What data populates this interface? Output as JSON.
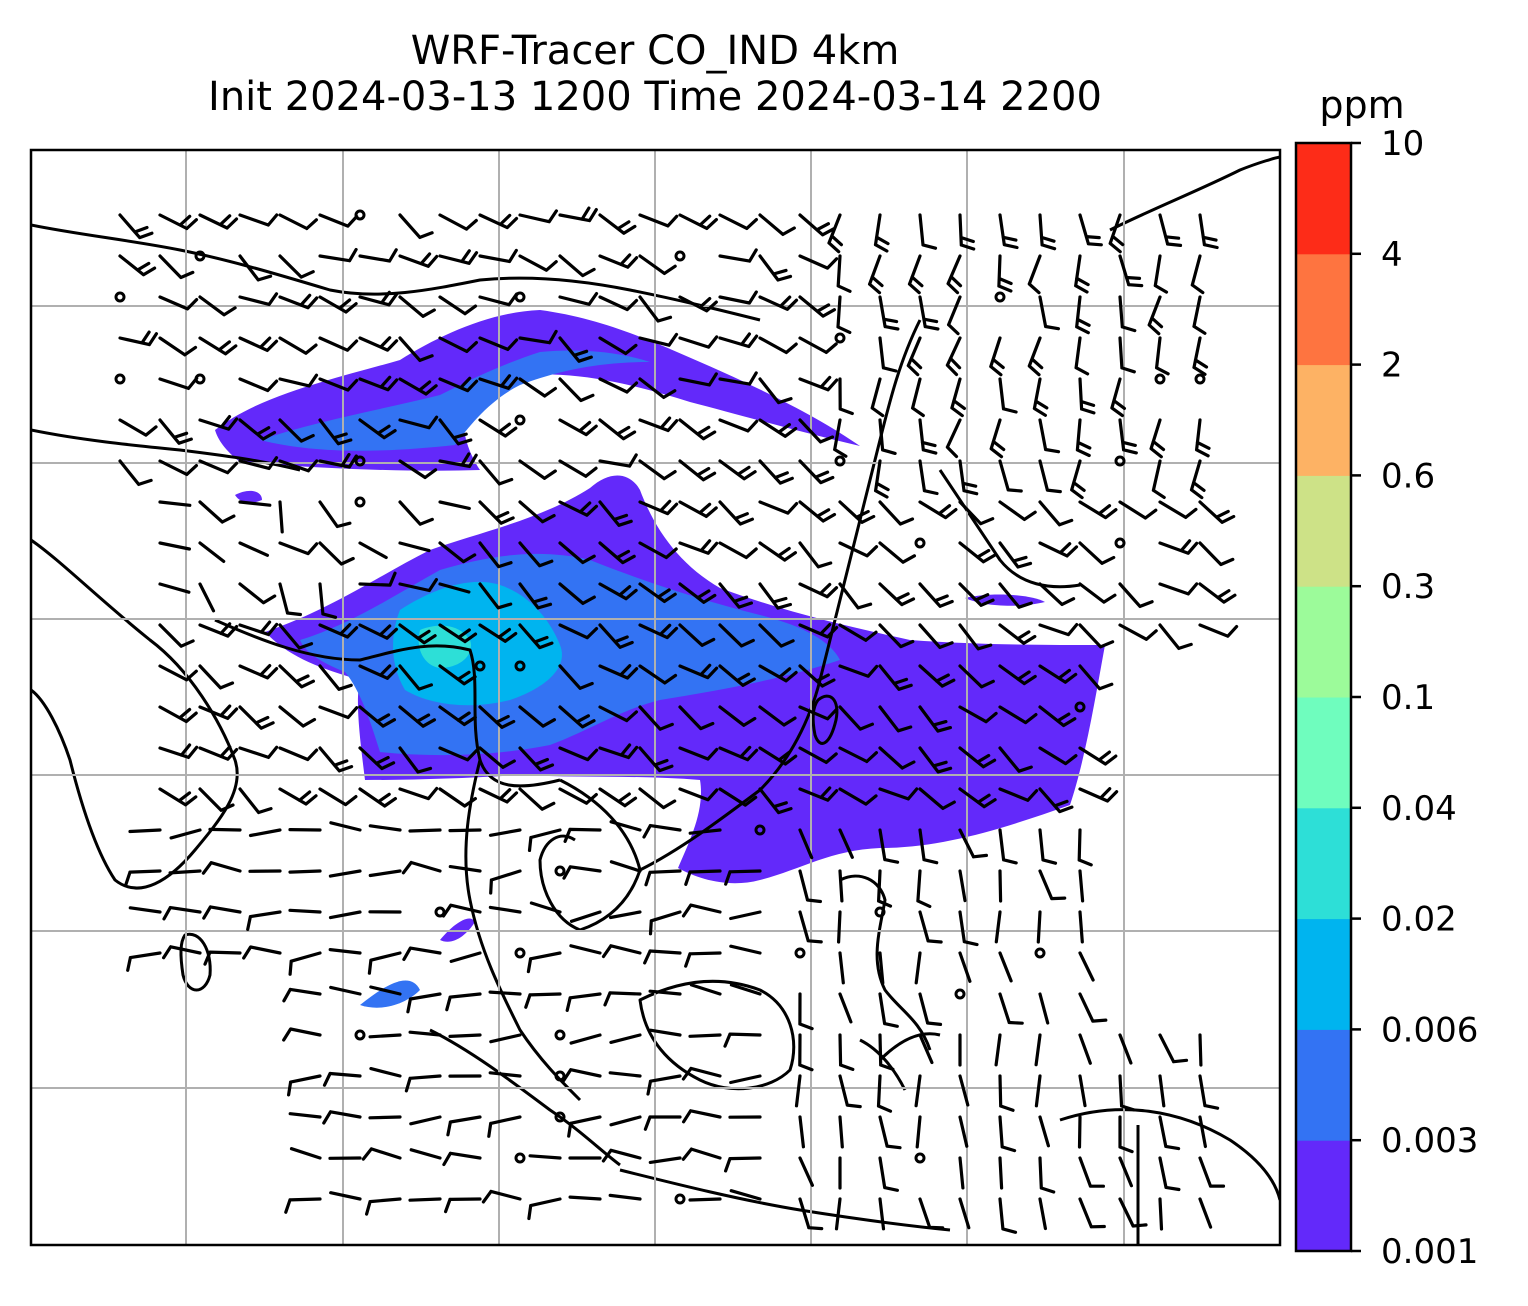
{
  "title": {
    "line1": "WRF-Tracer CO_IND 4km",
    "line2": "Init 2024-03-13 1200 Time 2024-03-14 2200"
  },
  "colorbar": {
    "unit": "ppm",
    "levels": [
      "0.001",
      "0.003",
      "0.006",
      "0.02",
      "0.04",
      "0.1",
      "0.3",
      "0.6",
      "2",
      "4",
      "10"
    ],
    "colors": [
      "#6329fa",
      "#3373f3",
      "#00b4ef",
      "#2ddfd7",
      "#6ffdbe",
      "#9cfb9a",
      "#cde287",
      "#fdb264",
      "#fe7440",
      "#fd2c18"
    ]
  },
  "map": {
    "gridlines": true,
    "background": "#ffffff",
    "coast_color": "#000000",
    "grid_color": "#b0b0b0"
  }
}
